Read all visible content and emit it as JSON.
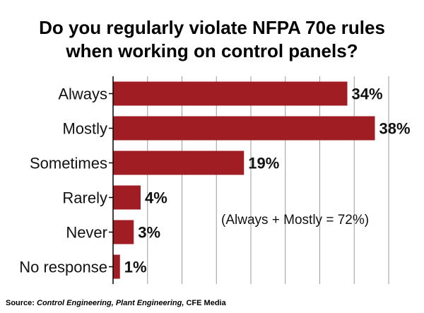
{
  "chart_data": {
    "type": "bar",
    "orientation": "horizontal",
    "title_lines": [
      "Do you regularly violate NFPA 70e rules",
      "when working on control panels?"
    ],
    "categories": [
      "Always",
      "Mostly",
      "Sometimes",
      "Rarely",
      "Never",
      "No response"
    ],
    "values": [
      34,
      38,
      19,
      4,
      3,
      1
    ],
    "value_labels": [
      "34%",
      "38%",
      "19%",
      "4%",
      "3%",
      "1%"
    ],
    "xlim": [
      0,
      40
    ],
    "grid": true,
    "legend": "none",
    "annotation": "(Always + Mostly = 72%)",
    "bar_color": "#a11d24"
  },
  "source": {
    "prefix": "Source: ",
    "publications": "Control Engineering, Plant Engineering,",
    "tail": " CFE Media"
  }
}
